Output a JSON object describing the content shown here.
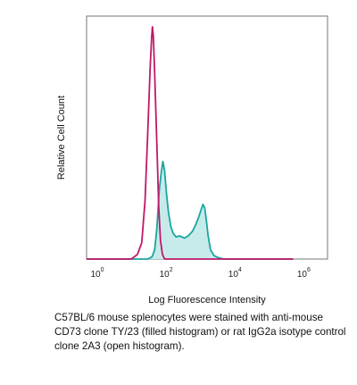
{
  "chart_data": {
    "type": "area",
    "xlabel": "Log Fluorescence Intensity",
    "ylabel": "Relative Cell Count",
    "x_scale": "log",
    "xlim": [
      1,
      10000000
    ],
    "ylim": [
      0,
      1
    ],
    "grid": false,
    "ticks": [
      {
        "value": 1,
        "base": "10",
        "exp": "0"
      },
      {
        "value": 100,
        "base": "10",
        "exp": "2"
      },
      {
        "value": 10000,
        "base": "10",
        "exp": "4"
      },
      {
        "value": 1000000,
        "base": "10",
        "exp": "6"
      }
    ],
    "series": [
      {
        "color": "#c0186a",
        "fill": false,
        "points": [
          [
            1,
            0
          ],
          [
            20,
            0
          ],
          [
            30,
            0.02
          ],
          [
            40,
            0.07
          ],
          [
            50,
            0.25
          ],
          [
            60,
            0.55
          ],
          [
            70,
            0.82
          ],
          [
            78,
            0.96
          ],
          [
            82,
            1.0
          ],
          [
            87,
            0.96
          ],
          [
            95,
            0.8
          ],
          [
            110,
            0.5
          ],
          [
            125,
            0.22
          ],
          [
            140,
            0.08
          ],
          [
            160,
            0.02
          ],
          [
            185,
            0
          ],
          [
            1000000,
            0
          ]
        ]
      },
      {
        "color": "#1aa5a0",
        "fill": true,
        "fill_color": "#c7ebea",
        "points": [
          [
            1,
            0
          ],
          [
            60,
            0
          ],
          [
            80,
            0.01
          ],
          [
            95,
            0.04
          ],
          [
            110,
            0.13
          ],
          [
            130,
            0.3
          ],
          [
            150,
            0.38
          ],
          [
            165,
            0.42
          ],
          [
            185,
            0.38
          ],
          [
            210,
            0.28
          ],
          [
            240,
            0.2
          ],
          [
            280,
            0.14
          ],
          [
            330,
            0.11
          ],
          [
            400,
            0.095
          ],
          [
            500,
            0.1
          ],
          [
            700,
            0.09
          ],
          [
            900,
            0.1
          ],
          [
            1200,
            0.12
          ],
          [
            1500,
            0.15
          ],
          [
            1800,
            0.18
          ],
          [
            2100,
            0.21
          ],
          [
            2400,
            0.235
          ],
          [
            2700,
            0.22
          ],
          [
            3000,
            0.17
          ],
          [
            3400,
            0.1
          ],
          [
            4000,
            0.04
          ],
          [
            5000,
            0.015
          ],
          [
            7000,
            0.005
          ],
          [
            10000,
            0
          ],
          [
            1000000,
            0
          ]
        ]
      }
    ]
  },
  "caption": "C57BL/6 mouse splenocytes were stained with anti-mouse CD73 clone TY/23 (filled histogram) or rat IgG2a isotype control clone 2A3 (open histogram)."
}
